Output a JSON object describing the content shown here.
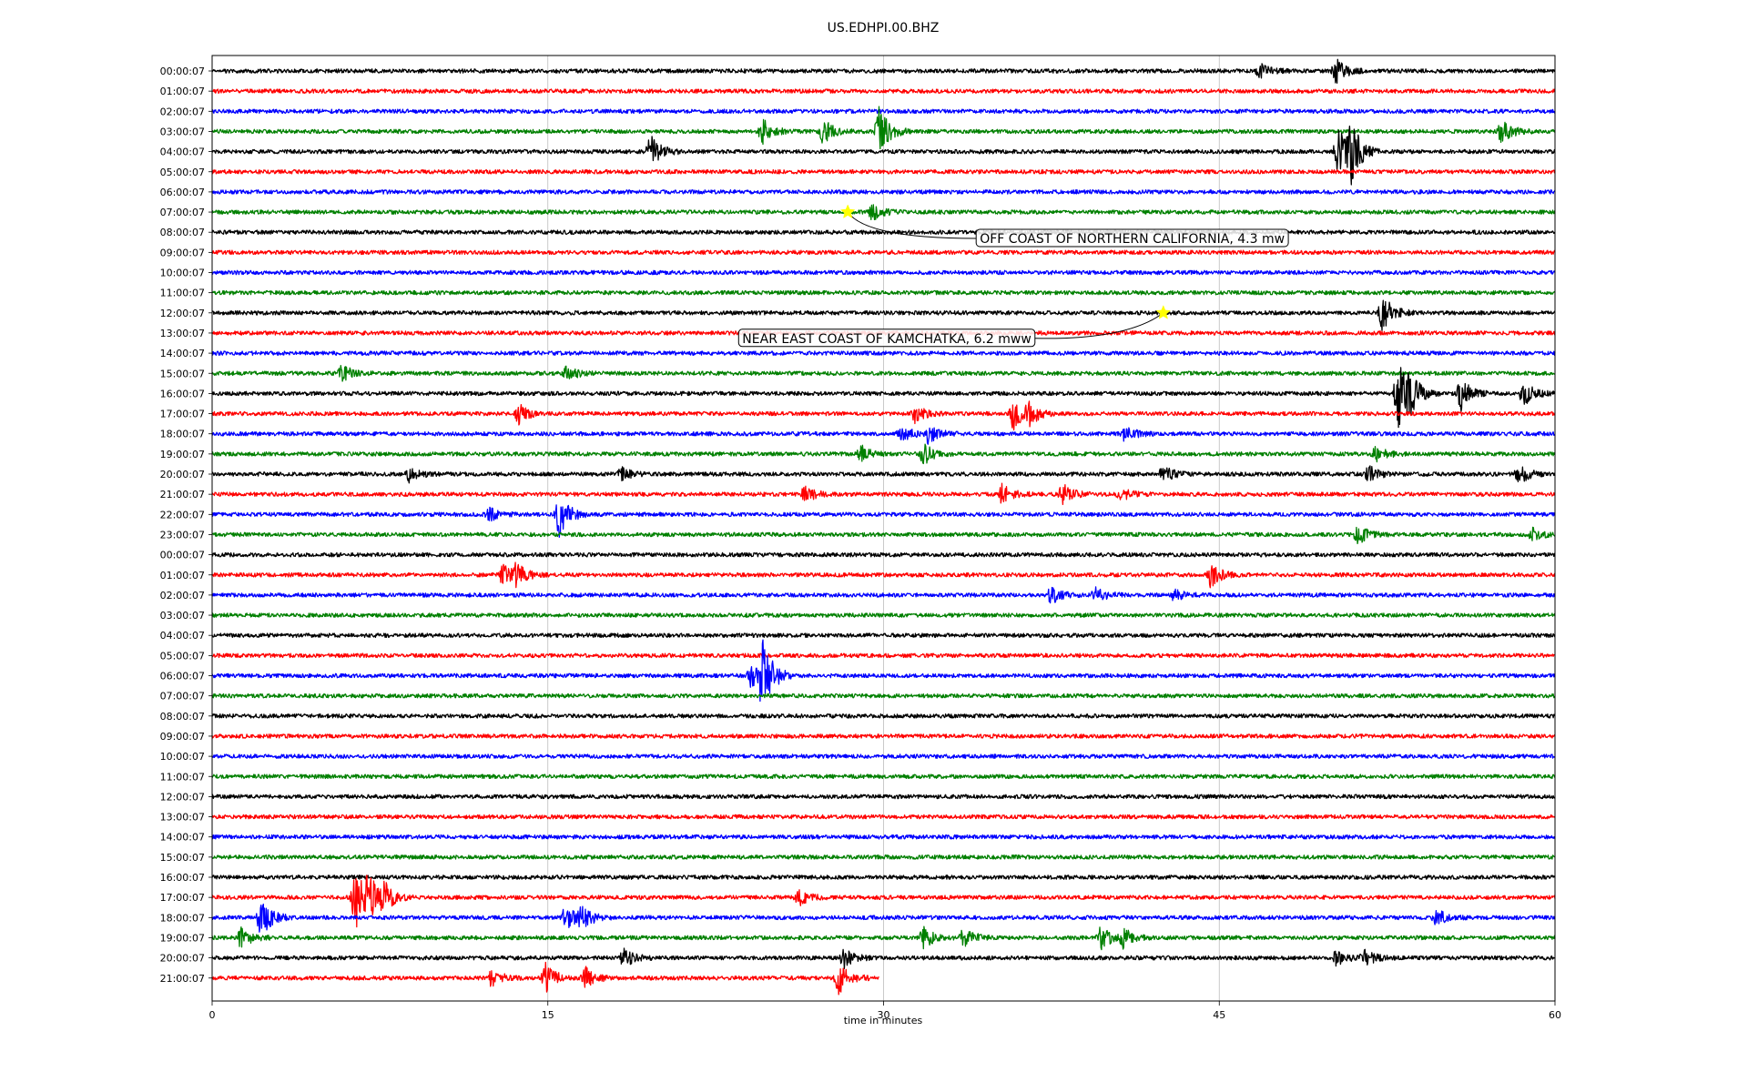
{
  "chart_data": {
    "type": "line",
    "title": "US.EDHPI.00.BHZ",
    "xlabel": "time in minutes",
    "ylabel": "",
    "xlim": [
      0,
      60
    ],
    "xticks": [
      0,
      15,
      30,
      45,
      60
    ],
    "grid": "vertical",
    "color_cycle": [
      "#000000",
      "#ff0000",
      "#0000ff",
      "#008000"
    ],
    "rows": [
      {
        "label": "00:00:07",
        "events": [
          {
            "t": 50.2,
            "amp": 0.6
          },
          {
            "t": 46.8,
            "amp": 0.35
          }
        ]
      },
      {
        "label": "01:00:07",
        "events": []
      },
      {
        "label": "02:00:07",
        "events": []
      },
      {
        "label": "03:00:07",
        "events": [
          {
            "t": 24.6,
            "amp": 0.6
          },
          {
            "t": 27.3,
            "amp": 0.6
          },
          {
            "t": 29.8,
            "amp": 1.2
          },
          {
            "t": 57.6,
            "amp": 0.6
          }
        ]
      },
      {
        "label": "04:00:07",
        "events": [
          {
            "t": 19.6,
            "amp": 0.8
          },
          {
            "t": 50.3,
            "amp": 1.2
          },
          {
            "t": 50.9,
            "amp": 1.3
          }
        ]
      },
      {
        "label": "05:00:07",
        "events": []
      },
      {
        "label": "06:00:07",
        "events": []
      },
      {
        "label": "07:00:07",
        "events": [
          {
            "t": 29.5,
            "amp": 0.4
          }
        ]
      },
      {
        "label": "08:00:07",
        "events": []
      },
      {
        "label": "09:00:07",
        "events": []
      },
      {
        "label": "10:00:07",
        "events": []
      },
      {
        "label": "11:00:07",
        "events": []
      },
      {
        "label": "12:00:07",
        "events": [
          {
            "t": 52.3,
            "amp": 0.9
          }
        ]
      },
      {
        "label": "13:00:07",
        "events": []
      },
      {
        "label": "14:00:07",
        "events": []
      },
      {
        "label": "15:00:07",
        "events": [
          {
            "t": 5.8,
            "amp": 0.4
          },
          {
            "t": 15.8,
            "amp": 0.4
          }
        ]
      },
      {
        "label": "16:00:07",
        "events": [
          {
            "t": 53.0,
            "amp": 1.8
          },
          {
            "t": 53.5,
            "amp": 0.8
          },
          {
            "t": 55.8,
            "amp": 0.8
          },
          {
            "t": 58.6,
            "amp": 0.6
          }
        ]
      },
      {
        "label": "17:00:07",
        "events": [
          {
            "t": 13.7,
            "amp": 0.5
          },
          {
            "t": 31.4,
            "amp": 0.4
          },
          {
            "t": 35.8,
            "amp": 0.8
          },
          {
            "t": 36.5,
            "amp": 0.5
          }
        ]
      },
      {
        "label": "18:00:07",
        "events": [
          {
            "t": 30.8,
            "amp": 0.4
          },
          {
            "t": 32.0,
            "amp": 0.5
          },
          {
            "t": 40.8,
            "amp": 0.4
          }
        ]
      },
      {
        "label": "19:00:07",
        "events": [
          {
            "t": 29.0,
            "amp": 0.4
          },
          {
            "t": 31.8,
            "amp": 0.5
          },
          {
            "t": 52.0,
            "amp": 0.4
          }
        ]
      },
      {
        "label": "20:00:07",
        "events": [
          {
            "t": 8.8,
            "amp": 0.4
          },
          {
            "t": 18.3,
            "amp": 0.3
          },
          {
            "t": 42.5,
            "amp": 0.4
          },
          {
            "t": 51.7,
            "amp": 0.4
          },
          {
            "t": 58.4,
            "amp": 0.5
          }
        ]
      },
      {
        "label": "21:00:07",
        "events": [
          {
            "t": 26.5,
            "amp": 0.4
          },
          {
            "t": 35.3,
            "amp": 0.5
          },
          {
            "t": 38.0,
            "amp": 0.5
          },
          {
            "t": 40.6,
            "amp": 0.3
          }
        ]
      },
      {
        "label": "22:00:07",
        "events": [
          {
            "t": 15.5,
            "amp": 1.1
          },
          {
            "t": 12.4,
            "amp": 0.3
          }
        ]
      },
      {
        "label": "23:00:07",
        "events": [
          {
            "t": 51.2,
            "amp": 0.5
          },
          {
            "t": 59.0,
            "amp": 0.3
          }
        ]
      },
      {
        "label": "00:00:07",
        "events": []
      },
      {
        "label": "01:00:07",
        "events": [
          {
            "t": 13.0,
            "amp": 0.5
          },
          {
            "t": 13.6,
            "amp": 0.5
          },
          {
            "t": 44.6,
            "amp": 0.6
          }
        ]
      },
      {
        "label": "02:00:07",
        "events": [
          {
            "t": 37.5,
            "amp": 0.4
          },
          {
            "t": 39.5,
            "amp": 0.4
          },
          {
            "t": 43.0,
            "amp": 0.3
          }
        ]
      },
      {
        "label": "03:00:07",
        "events": []
      },
      {
        "label": "04:00:07",
        "events": []
      },
      {
        "label": "05:00:07",
        "events": []
      },
      {
        "label": "06:00:07",
        "events": [
          {
            "t": 24.1,
            "amp": 0.6
          },
          {
            "t": 24.6,
            "amp": 1.8
          }
        ]
      },
      {
        "label": "07:00:07",
        "events": []
      },
      {
        "label": "08:00:07",
        "events": []
      },
      {
        "label": "09:00:07",
        "events": []
      },
      {
        "label": "10:00:07",
        "events": []
      },
      {
        "label": "11:00:07",
        "events": []
      },
      {
        "label": "12:00:07",
        "events": []
      },
      {
        "label": "13:00:07",
        "events": []
      },
      {
        "label": "14:00:07",
        "events": []
      },
      {
        "label": "15:00:07",
        "events": []
      },
      {
        "label": "16:00:07",
        "events": []
      },
      {
        "label": "17:00:07",
        "events": [
          {
            "t": 6.4,
            "amp": 1.6
          },
          {
            "t": 7.0,
            "amp": 1.0
          },
          {
            "t": 7.7,
            "amp": 0.6
          },
          {
            "t": 26.2,
            "amp": 0.4
          }
        ]
      },
      {
        "label": "18:00:07",
        "events": [
          {
            "t": 2.2,
            "amp": 1.0
          },
          {
            "t": 15.8,
            "amp": 0.6
          },
          {
            "t": 16.5,
            "amp": 0.6
          },
          {
            "t": 54.7,
            "amp": 0.4
          }
        ]
      },
      {
        "label": "19:00:07",
        "events": [
          {
            "t": 1.3,
            "amp": 0.5
          },
          {
            "t": 31.8,
            "amp": 0.5
          },
          {
            "t": 33.6,
            "amp": 0.5
          },
          {
            "t": 39.7,
            "amp": 0.6
          },
          {
            "t": 40.7,
            "amp": 0.5
          }
        ]
      },
      {
        "label": "20:00:07",
        "events": [
          {
            "t": 18.4,
            "amp": 0.5
          },
          {
            "t": 28.2,
            "amp": 0.5
          },
          {
            "t": 50.2,
            "amp": 0.4
          },
          {
            "t": 51.5,
            "amp": 0.4
          }
        ]
      },
      {
        "label": "21:00:07",
        "end": 29.8,
        "events": [
          {
            "t": 12.5,
            "amp": 0.5
          },
          {
            "t": 14.9,
            "amp": 0.7
          },
          {
            "t": 16.7,
            "amp": 0.5
          },
          {
            "t": 28.0,
            "amp": 0.8
          }
        ]
      }
    ],
    "annotations": [
      {
        "text": "OFF COAST OF NORTHERN CALIFORNIA, 4.3 mw",
        "row": 7,
        "t": 28.4
      },
      {
        "text": "NEAR EAST COAST OF KAMCHATKA, 6.2 mww",
        "row": 12,
        "t": 42.5
      }
    ],
    "marker_color": "#ffff00"
  }
}
